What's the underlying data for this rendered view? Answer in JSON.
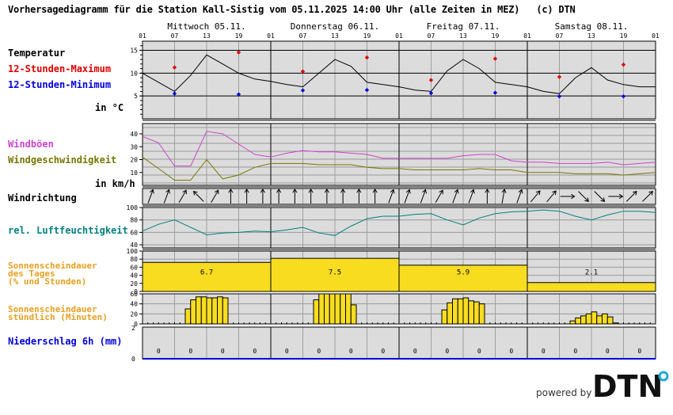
{
  "header": {
    "title": "Vorhersagediagramm für die Station Kall-Sistig vom 05.11.2025 14:00 Uhr (alle Zeiten in MEZ)   (c) DTN",
    "days": [
      "Mittwoch 05.11.",
      "Donnerstag 06.11.",
      "Freitag 07.11.",
      "Samstag 08.11."
    ],
    "hours": [
      "01",
      "07",
      "13",
      "19",
      "01",
      "07",
      "13",
      "19",
      "01",
      "07",
      "13",
      "19",
      "01",
      "07",
      "13",
      "19",
      "01"
    ]
  },
  "labels": {
    "temp_title": "Temperatur",
    "temp_max": "12-Stunden-Maximum",
    "temp_min": "12-Stunden-Minimum",
    "temp_unit": "in °C",
    "gust": "Windböen",
    "wind": "Windgeschwindigkeit",
    "wind_unit": "in km/h",
    "wind_dir": "Windrichtung",
    "humidity": "rel. Luftfeuchtigkeit",
    "sun_day_1": "Sonnenscheindauer",
    "sun_day_2": "des Tages",
    "sun_day_3": "(% und Stunden)",
    "sun_hour_1": "Sonnenscheindauer",
    "sun_hour_2": "stündlich (Minuten)",
    "precip": "Niederschlag 6h (mm)"
  },
  "footer": {
    "powered_by": "powered by",
    "logo_text": "DTN"
  },
  "colors": {
    "temp_max": "#dd0000",
    "temp_min": "#0000dd",
    "gust": "#cc44cc",
    "wind": "#777700",
    "humidity": "#008080",
    "sun": "#e8a020",
    "sun_fill": "#f8dc20",
    "precip": "#0000dd",
    "panel_bg": "#dcdcdc",
    "logo_accent": "#1fa8d8"
  },
  "chart_data": [
    {
      "type": "line",
      "title": "Temperatur",
      "ylabel": "in °C",
      "ylim": [
        0,
        17
      ],
      "yticks": [
        5,
        10,
        15
      ],
      "x": [
        "05.11. 01",
        "05.11. 04",
        "05.11. 07",
        "05.11. 10",
        "05.11. 13",
        "05.11. 16",
        "05.11. 19",
        "05.11. 22",
        "06.11. 01",
        "06.11. 04",
        "06.11. 07",
        "06.11. 10",
        "06.11. 13",
        "06.11. 16",
        "06.11. 19",
        "06.11. 22",
        "07.11. 01",
        "07.11. 04",
        "07.11. 07",
        "07.11. 10",
        "07.11. 13",
        "07.11. 16",
        "07.11. 19",
        "07.11. 22",
        "08.11. 01",
        "08.11. 04",
        "08.11. 07",
        "08.11. 10",
        "08.11. 13",
        "08.11. 16",
        "08.11. 19",
        "08.11. 22",
        "09.11. 01"
      ],
      "series": [
        {
          "name": "Temperatur",
          "values": [
            10,
            8,
            6,
            9.5,
            14,
            12,
            10,
            8.7,
            8.2,
            7.5,
            7,
            10,
            13,
            11.5,
            8,
            7.5,
            7,
            6.3,
            6,
            10.5,
            13,
            11,
            8,
            7.5,
            7,
            6,
            5.5,
            9,
            11.2,
            8.5,
            7.5,
            7,
            7
          ]
        }
      ],
      "points_max": [
        {
          "x": "05.11. 07",
          "y": 11.4
        },
        {
          "x": "05.11. 19",
          "y": 14.7
        },
        {
          "x": "06.11. 07",
          "y": 10.5
        },
        {
          "x": "06.11. 19",
          "y": 13.5
        },
        {
          "x": "07.11. 07",
          "y": 8.6
        },
        {
          "x": "07.11. 19",
          "y": 13.3
        },
        {
          "x": "08.11. 07",
          "y": 9.3
        },
        {
          "x": "08.11. 19",
          "y": 12
        }
      ],
      "points_min": [
        {
          "x": "05.11. 07",
          "y": 5.6
        },
        {
          "x": "05.11. 19",
          "y": 5.5
        },
        {
          "x": "06.11. 07",
          "y": 6.3
        },
        {
          "x": "06.11. 19",
          "y": 6.4
        },
        {
          "x": "07.11. 07",
          "y": 5.7
        },
        {
          "x": "07.11. 19",
          "y": 5.8
        },
        {
          "x": "08.11. 07",
          "y": 5
        },
        {
          "x": "08.11. 19",
          "y": 5
        }
      ]
    },
    {
      "type": "line",
      "title": "Wind",
      "ylabel": "in km/h",
      "ylim": [
        0,
        48
      ],
      "yticks": [
        10,
        20,
        30,
        40
      ],
      "x": [
        "05.11. 01",
        "05.11. 04",
        "05.11. 07",
        "05.11. 10",
        "05.11. 13",
        "05.11. 16",
        "05.11. 19",
        "05.11. 22",
        "06.11. 01",
        "06.11. 04",
        "06.11. 07",
        "06.11. 10",
        "06.11. 13",
        "06.11. 16",
        "06.11. 19",
        "06.11. 22",
        "07.11. 01",
        "07.11. 04",
        "07.11. 07",
        "07.11. 10",
        "07.11. 13",
        "07.11. 16",
        "07.11. 19",
        "07.11. 22",
        "08.11. 01",
        "08.11. 04",
        "08.11. 07",
        "08.11. 10",
        "08.11. 13",
        "08.11. 16",
        "08.11. 19",
        "08.11. 22",
        "09.11. 01"
      ],
      "series": [
        {
          "name": "Windböen",
          "values": [
            38,
            33,
            15,
            15,
            42,
            40,
            32,
            24,
            22,
            25,
            27,
            26,
            26,
            25,
            24,
            21,
            21,
            21,
            21,
            21,
            23,
            24,
            24,
            19,
            18,
            18,
            17,
            17,
            17,
            18,
            16,
            17,
            18
          ]
        },
        {
          "name": "Windgeschwindigkeit",
          "values": [
            22,
            13,
            4,
            4,
            20,
            5,
            8,
            14,
            17,
            17,
            17,
            16,
            16,
            16,
            14,
            13,
            13,
            12,
            12,
            12,
            12,
            13,
            12,
            12,
            10,
            10,
            10,
            9,
            9,
            9,
            8,
            9,
            10
          ]
        }
      ]
    },
    {
      "type": "line",
      "title": "Windrichtung",
      "x_count": 32,
      "directions_deg": [
        200,
        200,
        210,
        135,
        210,
        180,
        180,
        180,
        180,
        180,
        180,
        180,
        180,
        180,
        180,
        200,
        200,
        200,
        210,
        200,
        200,
        180,
        190,
        200,
        220,
        220,
        270,
        315,
        315,
        270,
        225,
        225
      ]
    },
    {
      "type": "line",
      "title": "rel. Luftfeuchtigkeit",
      "ylim": [
        35,
        100
      ],
      "yticks": [
        40,
        60,
        80,
        100
      ],
      "x": [
        "05.11. 01",
        "05.11. 04",
        "05.11. 07",
        "05.11. 10",
        "05.11. 13",
        "05.11. 16",
        "05.11. 19",
        "05.11. 22",
        "06.11. 01",
        "06.11. 04",
        "06.11. 07",
        "06.11. 10",
        "06.11. 13",
        "06.11. 16",
        "06.11. 19",
        "06.11. 22",
        "07.11. 01",
        "07.11. 04",
        "07.11. 07",
        "07.11. 10",
        "07.11. 13",
        "07.11. 16",
        "07.11. 19",
        "07.11. 22",
        "08.11. 01",
        "08.11. 04",
        "08.11. 07",
        "08.11. 10",
        "08.11. 13",
        "08.11. 16",
        "08.11. 19",
        "08.11. 22",
        "09.11. 01"
      ],
      "series": [
        {
          "name": "rel. Luftfeuchtigkeit",
          "values": [
            62,
            73,
            80,
            68,
            56,
            59,
            60,
            62,
            61,
            64,
            68,
            59,
            55,
            70,
            82,
            86,
            86,
            89,
            90,
            80,
            72,
            83,
            90,
            93,
            94,
            96,
            94,
            86,
            80,
            88,
            94,
            94,
            92
          ]
        }
      ]
    },
    {
      "type": "bar",
      "title": "Sonnenscheindauer des Tages (% und Stunden)",
      "ylim": [
        0,
        100
      ],
      "yticks": [
        0,
        20,
        40,
        60,
        80,
        100
      ],
      "categories": [
        "Mittwoch 05.11.",
        "Donnerstag 06.11.",
        "Freitag 07.11.",
        "Samstag 08.11."
      ],
      "values_percent": [
        72,
        82,
        65,
        22
      ],
      "values_hours": [
        6.7,
        7.5,
        5.9,
        2.1
      ]
    },
    {
      "type": "bar",
      "title": "Sonnenscheindauer stündlich (Minuten)",
      "ylim": [
        0,
        60
      ],
      "yticks": [
        0,
        20,
        40,
        60
      ],
      "days": [
        {
          "day": "05.11.",
          "start_hour": 9,
          "values": [
            30,
            48,
            54,
            54,
            52,
            52,
            54,
            52
          ]
        },
        {
          "day": "06.11.",
          "start_hour": 9,
          "values": [
            48,
            60,
            60,
            60,
            60,
            60,
            60,
            38
          ]
        },
        {
          "day": "07.11.",
          "start_hour": 9,
          "values": [
            28,
            42,
            50,
            50,
            52,
            46,
            44,
            40
          ]
        },
        {
          "day": "08.11.",
          "start_hour": 9,
          "values": [
            6,
            12,
            16,
            20,
            24,
            16,
            20,
            14,
            2
          ]
        }
      ]
    },
    {
      "type": "bar",
      "title": "Niederschlag 6h (mm)",
      "ylim": [
        0,
        2
      ],
      "yticks": [
        0,
        2
      ],
      "categories": [
        "05.11. 01-07",
        "05.11. 07-13",
        "05.11. 13-19",
        "05.11. 19-01",
        "06.11. 01-07",
        "06.11. 07-13",
        "06.11. 13-19",
        "06.11. 19-01",
        "07.11. 01-07",
        "07.11. 07-13",
        "07.11. 13-19",
        "07.11. 19-01",
        "08.11. 01-07",
        "08.11. 07-13",
        "08.11. 13-19",
        "08.11. 19-01"
      ],
      "values": [
        0,
        0,
        0,
        0,
        0,
        0,
        0,
        0,
        0,
        0,
        0,
        0,
        0,
        0,
        0,
        0
      ]
    }
  ]
}
